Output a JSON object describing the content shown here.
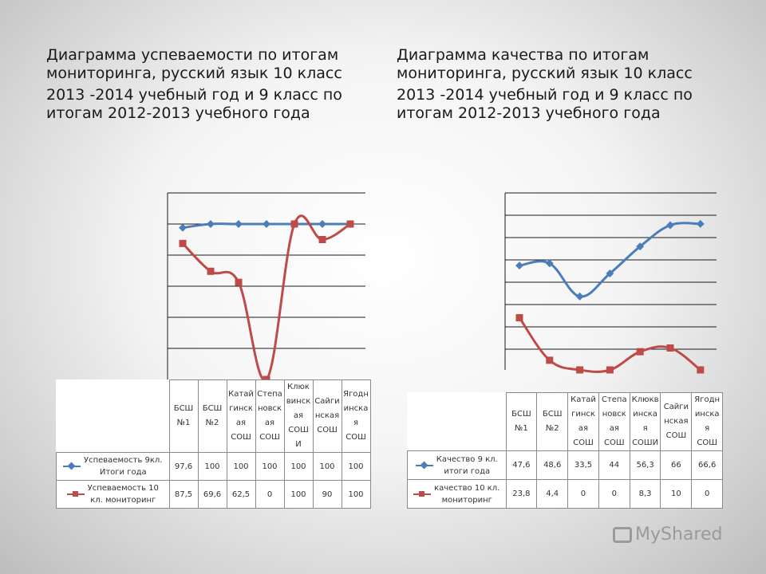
{
  "left": {
    "title_line1": "Диаграмма успеваемости по итогам",
    "title_line2": "мониторинга, русский язык 10 класс",
    "title_line3": "2013 -2014 учебный год  и 9 класс по",
    "title_line4": "итогам  2012-2013 учебного года"
  },
  "right": {
    "title_line1": "Диаграмма качества по итогам",
    "title_line2": "мониторинга, русский язык 10 класс",
    "title_line3": "2013 -2014 учебный год  и 9 класс по",
    "title_line4": "итогам  2012-2013 учебного года"
  },
  "logo_text": "MyShared",
  "chart_data": [
    {
      "type": "line",
      "title": "",
      "categories": [
        [
          "БСШ",
          "№1"
        ],
        [
          "БСШ",
          "№2"
        ],
        [
          "Катай",
          "гинск",
          "ая",
          "СОШ"
        ],
        [
          "Степа",
          "новск",
          "ая",
          "СОШ"
        ],
        [
          "Клюк",
          "винск",
          "ая",
          "СОШ",
          "И"
        ],
        [
          "Сайги",
          "нская",
          "СОШ"
        ],
        [
          "Ягодн",
          "инска",
          "я",
          "СОШ"
        ]
      ],
      "series": [
        {
          "name": [
            "Успеваемость 9кл.",
            "Итоги года"
          ],
          "color": "#4a7ebb",
          "marker": "diamond",
          "values": [
            97.6,
            100,
            100,
            100,
            100,
            100,
            100
          ],
          "labels": [
            "97,6",
            "100",
            "100",
            "100",
            "100",
            "100",
            "100"
          ]
        },
        {
          "name": [
            "Успеваемость 10",
            "кл. мониторинг"
          ],
          "color": "#be4b48",
          "marker": "square",
          "values": [
            87.5,
            69.6,
            62.5,
            0,
            100,
            90,
            100
          ],
          "labels": [
            "87,5",
            "69,6",
            "62,5",
            "0",
            "100",
            "90",
            "100"
          ]
        }
      ],
      "ylim": [
        0,
        120
      ],
      "grid": true,
      "legend": "table"
    },
    {
      "type": "line",
      "title": "",
      "categories": [
        [
          "БСШ",
          "№1"
        ],
        [
          "БСШ",
          "№2"
        ],
        [
          "Катай",
          "гинск",
          "ая",
          "СОШ"
        ],
        [
          "Степа",
          "новск",
          "ая",
          "СОШ"
        ],
        [
          "Клюкв",
          "инска",
          "я",
          "СОШИ"
        ],
        [
          "Сайги",
          "нская",
          "СОШ"
        ],
        [
          "Ягодн",
          "инска",
          "я",
          "СОШ"
        ]
      ],
      "series": [
        {
          "name": [
            "Качество 9 кл.",
            "итоги года"
          ],
          "color": "#4a7ebb",
          "marker": "diamond",
          "values": [
            47.6,
            48.6,
            33.5,
            44,
            56.3,
            66,
            66.6
          ],
          "labels": [
            "47,6",
            "48,6",
            "33,5",
            "44",
            "56,3",
            "66",
            "66,6"
          ]
        },
        {
          "name": [
            "качество 10 кл.",
            "мониторинг"
          ],
          "color": "#be4b48",
          "marker": "square",
          "values": [
            23.8,
            4.4,
            0,
            0,
            8.3,
            10,
            0
          ],
          "labels": [
            "23,8",
            "4,4",
            "0",
            "0",
            "8,3",
            "10",
            "0"
          ]
        }
      ],
      "ylim": [
        -5,
        80
      ],
      "grid": true,
      "legend": "table"
    }
  ]
}
